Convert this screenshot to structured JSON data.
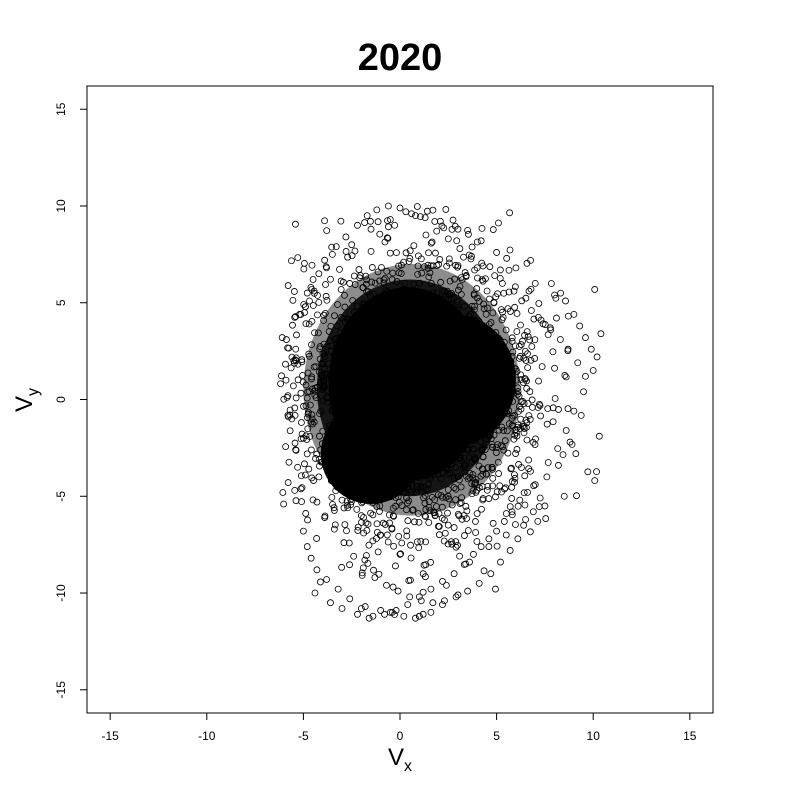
{
  "chart_data": {
    "type": "scatter",
    "title": "2020",
    "xlabel": "V",
    "xlabel_sub": "x",
    "ylabel": "V",
    "ylabel_sub": "y",
    "xlim": [
      -16.2,
      16.2
    ],
    "ylim": [
      -16.2,
      16.2
    ],
    "xticks": [
      -15,
      -10,
      -5,
      0,
      5,
      10,
      15
    ],
    "yticks": [
      -15,
      -10,
      -5,
      0,
      5,
      10,
      15
    ],
    "grid": false,
    "marker": "open-circle",
    "point_color": "#000000",
    "cloud_description": "dense point cloud centered near (0.5, 0.5), extent x from about -6.2 to 10.5, y from about -11.3 to 10.0",
    "x": [
      0.5,
      -1,
      2,
      1.5,
      -2,
      3,
      0,
      -3,
      4,
      2.5,
      -1.5,
      1,
      -2.5,
      3.5,
      0.2,
      -4,
      5,
      -0.5,
      2,
      1,
      -5.8,
      -5.5,
      -6.1,
      -5.2,
      -4.8,
      -5.6,
      -5.9,
      -4.5,
      -5,
      -5.3,
      -4.2,
      -3.8,
      -3.5,
      -3,
      -2.5,
      -2,
      -1.5,
      -1,
      -0.5,
      0,
      0.3,
      0.8,
      1.2,
      1.8,
      2.4,
      3,
      3.6,
      4.2,
      4.6,
      5,
      5.5,
      6,
      6.5,
      7,
      7.5,
      8,
      8.5,
      9,
      9.3,
      9.6,
      9.9,
      10.2,
      10.4,
      10,
      9.5,
      9,
      8.6,
      8.8,
      9.1,
      8.2,
      7.6,
      7,
      6.6,
      6.2,
      5.8,
      5.4,
      5,
      4.6,
      4.2,
      3.8,
      3.4,
      2.8,
      2.2,
      1.6,
      1,
      0.4,
      -0.2,
      -0.8,
      -1.4,
      -2,
      -2.6,
      -3.2,
      -3.8,
      -4.3,
      -4.6,
      -4.8,
      -5,
      -4.4,
      -3.6,
      -3,
      -2.2,
      -1.6,
      -1,
      -0.4,
      0.2,
      1,
      1.6,
      2.2,
      3,
      -4.9,
      -4.7,
      -4.2,
      -3.9,
      -3.3,
      -2.8,
      -2.2,
      -1.7,
      -1.2,
      -0.6,
      0,
      0.6,
      1.3,
      1.9,
      2.5,
      3.1,
      3.7,
      4.3,
      4.9,
      5.3,
      5.9,
      6.3,
      6.8,
      7.3,
      7.8,
      8.3,
      8.7,
      9.2,
      9.6,
      -5.7,
      -5.4,
      -4.9,
      -4.3,
      -3.9,
      -3.4,
      -2.9,
      -2.4,
      -1.9,
      -1.3,
      -0.7,
      -0.1,
      0.5,
      1.1,
      1.7,
      2.3,
      2.9,
      3.5,
      4.1,
      4.7,
      5.2,
      5.7,
      6.1,
      6.4,
      6.9,
      1,
      1.2,
      0.8,
      -0.5,
      -1.8
    ],
    "y": [
      0.5,
      1,
      -1,
      2,
      0,
      1.5,
      -2,
      2.5,
      -0.5,
      3,
      -3,
      4,
      -1.5,
      0.8,
      -4,
      1.2,
      0.5,
      5,
      -2.5,
      6,
      0.2,
      2,
      3.2,
      4.4,
      5.5,
      -1,
      1,
      6.2,
      -2,
      -3.5,
      -4,
      6.8,
      7.5,
      -5.2,
      8,
      -6,
      8.8,
      -7,
      9.3,
      -8,
      9.7,
      9.5,
      -9,
      9.2,
      -9.6,
      8.8,
      -8.4,
      8.2,
      -7.6,
      7.6,
      -7,
      6.8,
      -6.2,
      6,
      -5.5,
      5.4,
      -5,
      4.4,
      3.8,
      3.2,
      2.6,
      2.2,
      3.4,
      1.5,
      0.4,
      -0.6,
      -1.6,
      -2.2,
      -2.8,
      -3.4,
      -4,
      -4.4,
      -4.8,
      -5.2,
      -5.8,
      -6.3,
      -6.8,
      -7.2,
      -7.6,
      -8,
      -8.5,
      -9,
      -9.4,
      -9.8,
      -10.2,
      -10.6,
      -10.9,
      -11.1,
      -11.2,
      -10.8,
      -10.3,
      -9.8,
      -9.3,
      -8.8,
      -8.2,
      -7.6,
      -6.8,
      -10,
      -10.5,
      -10.8,
      -11.1,
      -11.3,
      -10.9,
      -11,
      -11.2,
      -11.2,
      -11,
      -10.6,
      -10.1,
      4.8,
      3.9,
      6.5,
      7.2,
      7.9,
      8.4,
      9,
      9.5,
      9.8,
      10,
      9.9,
      9.6,
      9.4,
      8.7,
      8.3,
      7.8,
      7.4,
      6.9,
      6.4,
      6,
      5.6,
      5.1,
      4.6,
      4.1,
      3.6,
      3.1,
      2.6,
      1.9,
      1.2,
      -0.8,
      -2.6,
      -3.9,
      -5.3,
      -6.1,
      -6.7,
      -7.4,
      -8.1,
      -8.7,
      -9.2,
      -9.6,
      -9.9,
      -10.2,
      -10.4,
      -10.5,
      -10.4,
      -10.2,
      -9.9,
      -9.5,
      -9,
      -8.4,
      -7.8,
      -7.2,
      -6.5,
      -5.8,
      -11.2,
      -11.1,
      -11.3,
      -11,
      -10.7
    ]
  }
}
